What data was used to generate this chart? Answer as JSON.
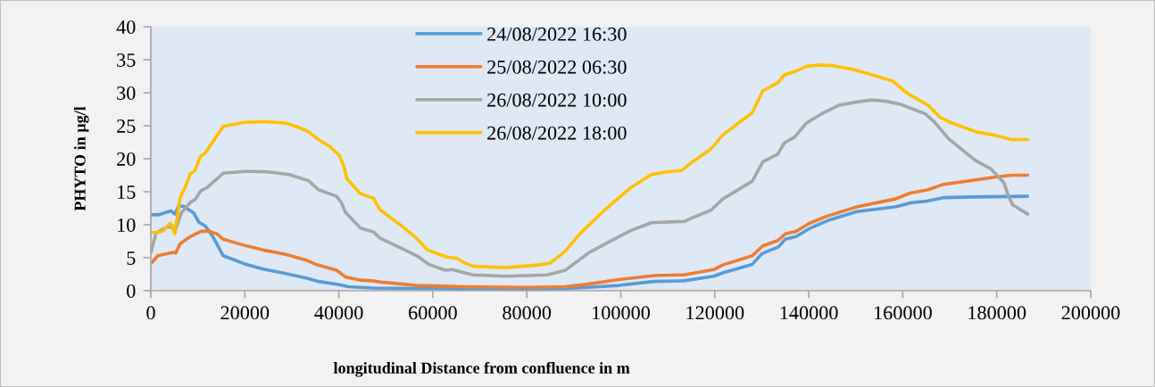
{
  "chart_data": {
    "type": "line",
    "xlabel": "longitudinal Distance from confluence in m",
    "ylabel": "PHYTO in µg/l",
    "xlim": [
      0,
      200000
    ],
    "xticks": [
      0,
      20000,
      40000,
      60000,
      80000,
      100000,
      120000,
      140000,
      160000,
      180000,
      200000
    ],
    "ylim": [
      0,
      40
    ],
    "yticks": [
      0,
      5,
      10,
      15,
      20,
      25,
      30,
      35,
      40
    ],
    "grid": false,
    "legend": "top",
    "series": [
      {
        "name": "24/08/2022 16:30",
        "color": "#5b9bd5",
        "x": [
          0,
          1500,
          4300,
          5100,
          5900,
          6900,
          9100,
          10200,
          11600,
          13200,
          15400,
          19800,
          23700,
          28700,
          33200,
          35700,
          40100,
          42000,
          47100,
          59800,
          70000,
          80000,
          88000,
          93000,
          99600,
          107000,
          113500,
          119800,
          121700,
          128000,
          130000,
          131300,
          133500,
          135000,
          137300,
          140100,
          143900,
          150200,
          158400,
          161600,
          165400,
          168600,
          175500,
          186600
        ],
        "values": [
          11.5,
          11.5,
          12.1,
          11.6,
          12.8,
          12.8,
          11.8,
          10.4,
          9.8,
          8.2,
          5.3,
          4.1,
          3.3,
          2.6,
          1.9,
          1.4,
          0.9,
          0.6,
          0.4,
          0.3,
          0.2,
          0.2,
          0.3,
          0.5,
          0.8,
          1.4,
          1.5,
          2.2,
          2.7,
          4.0,
          5.6,
          6.0,
          6.6,
          7.8,
          8.2,
          9.4,
          10.6,
          12.0,
          12.7,
          13.3,
          13.6,
          14.1,
          14.2,
          14.3
        ]
      },
      {
        "name": "25/08/2022 06:30",
        "color": "#ed7d31",
        "x": [
          0,
          1500,
          2700,
          4900,
          5300,
          6200,
          8400,
          10700,
          12600,
          14100,
          15400,
          19800,
          23700,
          28700,
          33200,
          35100,
          39500,
          41400,
          44600,
          47100,
          49000,
          56600,
          66100,
          80000,
          88200,
          93000,
          99600,
          107200,
          113500,
          119800,
          121700,
          128000,
          130200,
          133400,
          135000,
          137300,
          140100,
          143900,
          150200,
          158400,
          161600,
          165400,
          168600,
          175500,
          180500,
          183100,
          186600
        ],
        "values": [
          4.1,
          5.3,
          5.5,
          5.8,
          5.7,
          7.1,
          8.2,
          9.0,
          9.0,
          8.6,
          7.8,
          6.9,
          6.2,
          5.5,
          4.6,
          4.0,
          3.1,
          2.1,
          1.6,
          1.5,
          1.3,
          0.8,
          0.6,
          0.5,
          0.6,
          1.0,
          1.7,
          2.3,
          2.4,
          3.2,
          3.9,
          5.3,
          6.8,
          7.6,
          8.6,
          9.0,
          10.2,
          11.3,
          12.7,
          13.9,
          14.8,
          15.3,
          16.1,
          16.8,
          17.3,
          17.5,
          17.5
        ]
      },
      {
        "name": "26/08/2022 10:00",
        "color": "#a5a5a5",
        "x": [
          0,
          1100,
          2700,
          4300,
          5100,
          6500,
          8400,
          9400,
          10700,
          11900,
          15400,
          20500,
          24900,
          29400,
          33500,
          35700,
          39500,
          40500,
          41400,
          44600,
          47400,
          48700,
          53400,
          56600,
          59100,
          62600,
          64200,
          66800,
          68600,
          75600,
          84400,
          88200,
          93300,
          99600,
          102100,
          106500,
          113500,
          115400,
          119200,
          121700,
          128000,
          130200,
          133400,
          134800,
          137000,
          139500,
          142700,
          146400,
          150200,
          153400,
          156600,
          159700,
          164800,
          166700,
          169800,
          172400,
          175500,
          178700,
          181500,
          182500,
          183400,
          186600
        ],
        "values": [
          5.8,
          8.7,
          9.4,
          9.8,
          8.9,
          11.8,
          13.4,
          13.8,
          15.2,
          15.6,
          17.8,
          18.1,
          18.0,
          17.6,
          16.7,
          15.3,
          14.3,
          13.4,
          11.9,
          9.5,
          8.9,
          8.0,
          6.4,
          5.3,
          4.0,
          3.1,
          3.2,
          2.7,
          2.4,
          2.2,
          2.4,
          3.1,
          5.8,
          8.2,
          9.1,
          10.3,
          10.5,
          11.1,
          12.2,
          13.9,
          16.6,
          19.5,
          20.7,
          22.4,
          23.3,
          25.4,
          26.8,
          28.1,
          28.6,
          28.9,
          28.7,
          28.2,
          26.8,
          25.6,
          23.0,
          21.5,
          19.7,
          18.5,
          16.4,
          14.3,
          13.0,
          11.6
        ]
      },
      {
        "name": "26/08/2022 18:00",
        "color": "#ffc000",
        "x": [
          0,
          1500,
          2700,
          4100,
          4600,
          5100,
          6200,
          7200,
          8400,
          9400,
          10500,
          11600,
          15400,
          19800,
          24300,
          28700,
          31300,
          33500,
          35700,
          38200,
          40100,
          41100,
          41700,
          44600,
          47400,
          48700,
          53400,
          56600,
          58800,
          63000,
          65200,
          66800,
          68600,
          75600,
          82500,
          85000,
          88200,
          91400,
          96400,
          99600,
          102100,
          106500,
          109700,
          112900,
          115400,
          119200,
          121700,
          128000,
          130200,
          133400,
          134800,
          137000,
          139500,
          142000,
          145200,
          149600,
          154000,
          157800,
          161000,
          165400,
          167900,
          170500,
          175500,
          179300,
          183100,
          186600
        ],
        "values": [
          8.8,
          8.8,
          9.1,
          10.2,
          9.8,
          8.6,
          14.1,
          15.5,
          17.7,
          18.2,
          20.3,
          20.9,
          24.9,
          25.5,
          25.6,
          25.4,
          24.8,
          24.1,
          22.9,
          21.8,
          20.5,
          18.8,
          17.0,
          14.7,
          14.0,
          12.3,
          9.8,
          7.9,
          6.2,
          5.1,
          4.9,
          4.2,
          3.7,
          3.5,
          3.9,
          4.2,
          6.0,
          8.7,
          12.1,
          14.1,
          15.6,
          17.6,
          18.0,
          18.2,
          19.6,
          21.5,
          23.6,
          27.0,
          30.3,
          31.5,
          32.7,
          33.2,
          34.0,
          34.2,
          34.1,
          33.5,
          32.6,
          31.8,
          29.9,
          28.1,
          26.3,
          25.4,
          24.1,
          23.6,
          22.9,
          22.9
        ]
      }
    ]
  }
}
